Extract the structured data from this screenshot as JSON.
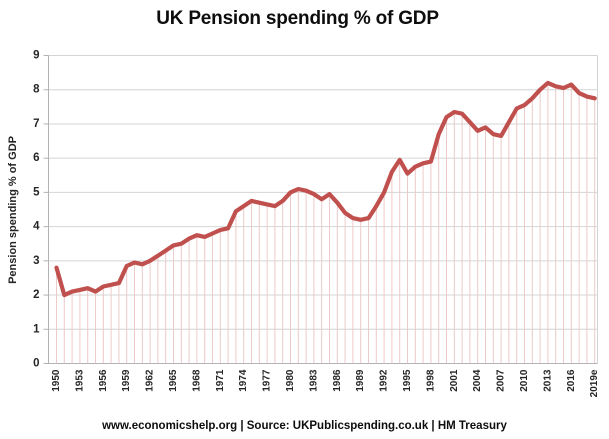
{
  "chart": {
    "title": "UK Pension spending % of GDP",
    "y_axis_title": "Pension spending % of GDP"
  },
  "footer": {
    "text": "www.economicshelp.org | Source: UKPublicspending.co.uk | HM Treasury"
  },
  "chart_data": {
    "type": "line",
    "title": "UK Pension spending % of GDP",
    "xlabel": "",
    "ylabel": "Pension spending % of GDP",
    "ylim": [
      0,
      9
    ],
    "y_ticks": [
      0,
      1,
      2,
      3,
      4,
      5,
      6,
      7,
      8,
      9
    ],
    "grid": "horizontal",
    "legend_position": "none",
    "drop_lines_to_axis": true,
    "x_tick_step": 3,
    "x_tick_labels": [
      "1950",
      "1953",
      "1956",
      "1959",
      "1962",
      "1965",
      "1968",
      "1971",
      "1974",
      "1977",
      "1980",
      "1983",
      "1986",
      "1989",
      "1992",
      "1995",
      "1998",
      "2001",
      "2004",
      "2007",
      "2010",
      "2013",
      "2016",
      "2019e"
    ],
    "x": [
      1950,
      1951,
      1952,
      1953,
      1954,
      1955,
      1956,
      1957,
      1958,
      1959,
      1960,
      1961,
      1962,
      1963,
      1964,
      1965,
      1966,
      1967,
      1968,
      1969,
      1970,
      1971,
      1972,
      1973,
      1974,
      1975,
      1976,
      1977,
      1978,
      1979,
      1980,
      1981,
      1982,
      1983,
      1984,
      1985,
      1986,
      1987,
      1988,
      1989,
      1990,
      1991,
      1992,
      1993,
      1994,
      1995,
      1996,
      1997,
      1998,
      1999,
      2000,
      2001,
      2002,
      2003,
      2004,
      2005,
      2006,
      2007,
      2008,
      2009,
      2010,
      2011,
      2012,
      2013,
      2014,
      2015,
      2016,
      2017,
      2018,
      2019
    ],
    "series": [
      {
        "name": "Pension spending % of GDP",
        "values": [
          2.8,
          2.0,
          2.1,
          2.15,
          2.2,
          2.1,
          2.25,
          2.3,
          2.35,
          2.85,
          2.95,
          2.9,
          3.0,
          3.15,
          3.3,
          3.45,
          3.5,
          3.65,
          3.75,
          3.7,
          3.8,
          3.9,
          3.95,
          4.45,
          4.6,
          4.75,
          4.7,
          4.65,
          4.6,
          4.75,
          5.0,
          5.1,
          5.05,
          4.95,
          4.8,
          4.95,
          4.7,
          4.4,
          4.25,
          4.2,
          4.25,
          4.6,
          5.0,
          5.6,
          5.95,
          5.55,
          5.75,
          5.85,
          5.9,
          6.7,
          7.2,
          7.35,
          7.3,
          7.05,
          6.8,
          6.9,
          6.7,
          6.65,
          7.05,
          7.45,
          7.55,
          7.75,
          8.0,
          8.2,
          8.1,
          8.05,
          8.15,
          7.9,
          7.8,
          7.75
        ]
      }
    ],
    "colors": {
      "line": "#c0504d",
      "drop_line": "#eccac8",
      "gridline": "#d4d4d4",
      "axis": "#b3b3b3",
      "tick_text": "#262626"
    }
  }
}
